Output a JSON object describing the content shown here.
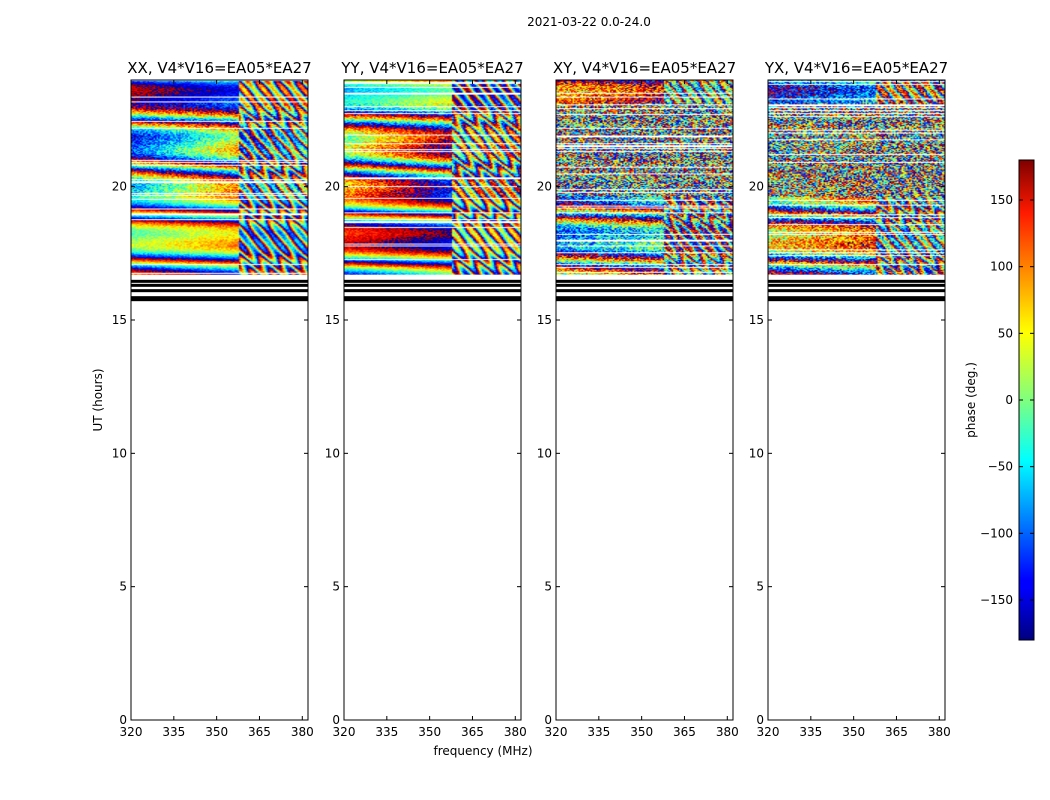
{
  "figure_title": "2021-03-22 0.0-24.0",
  "chart_data": {
    "type": "heatmap",
    "title": "2021-03-22 0.0-24.0",
    "xlabel": "frequency (MHz)",
    "ylabel": "UT (hours)",
    "xlim": [
      320,
      382
    ],
    "ylim": [
      0,
      24
    ],
    "xticks": [
      320,
      335,
      350,
      365,
      380
    ],
    "yticks": [
      0,
      5,
      10,
      15,
      20
    ],
    "data_time_range": [
      15.7,
      24.0
    ],
    "panels": [
      {
        "name": "xx",
        "title": "XX, V4*V16=EA05*EA27",
        "polarization": "XX",
        "show_ylabel": true,
        "show_xlabel": false
      },
      {
        "name": "yy",
        "title": "YY, V4*V16=EA05*EA27",
        "polarization": "YY",
        "show_ylabel": false,
        "show_xlabel": true
      },
      {
        "name": "xy",
        "title": "XY, V4*V16=EA05*EA27",
        "polarization": "XY",
        "show_ylabel": false,
        "show_xlabel": false
      },
      {
        "name": "yx",
        "title": "YX, V4*V16=EA05*EA27",
        "polarization": "YX",
        "show_ylabel": false,
        "show_xlabel": false
      }
    ],
    "colorbar": {
      "label": "phase (deg.)",
      "range": [
        -180,
        180
      ],
      "ticks": [
        150,
        100,
        50,
        0,
        -50,
        -100,
        -150
      ],
      "tick_labels": [
        "150",
        "100",
        "50",
        "0",
        "−50",
        "−100",
        "−150"
      ],
      "colormap": "jet"
    }
  }
}
